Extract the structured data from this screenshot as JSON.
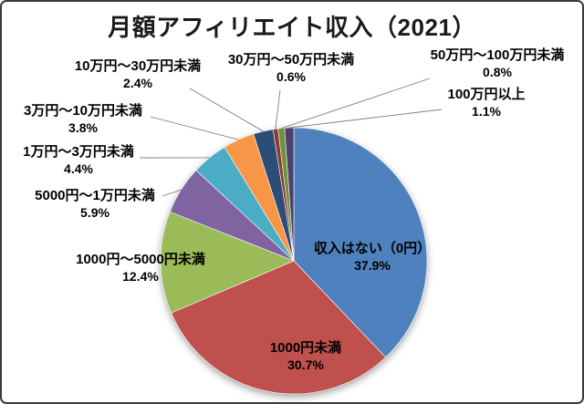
{
  "title": "月額アフィリエイト収入（2021）",
  "chart_data": {
    "type": "pie",
    "title": "月額アフィリエイト収入（2021）",
    "unit": "%",
    "start_angle_deg": 0,
    "direction": "clockwise",
    "legend": "none",
    "label_style": "category name + percentage, callout lines for small slices",
    "slices": [
      {
        "label": "収入はない（0円）",
        "value": 37.9,
        "pct_text": "37.9%",
        "color": "#4E81BD",
        "label_placement": "inside"
      },
      {
        "label": "1000円未満",
        "value": 30.7,
        "pct_text": "30.7%",
        "color": "#C0504D",
        "label_placement": "inside"
      },
      {
        "label": "1000円～5000円未満",
        "value": 12.4,
        "pct_text": "12.4%",
        "color": "#9BBB59",
        "label_placement": "outside"
      },
      {
        "label": "5000円～1万円未満",
        "value": 5.9,
        "pct_text": "5.9%",
        "color": "#8064A2",
        "label_placement": "outside"
      },
      {
        "label": "1万円～3万円未満",
        "value": 4.4,
        "pct_text": "4.4%",
        "color": "#4BACC6",
        "label_placement": "outside"
      },
      {
        "label": "3万円～10万円未満",
        "value": 3.8,
        "pct_text": "3.8%",
        "color": "#F79646",
        "label_placement": "outside"
      },
      {
        "label": "10万円～30万円未満",
        "value": 2.4,
        "pct_text": "2.4%",
        "color": "#2C4D75",
        "label_placement": "outside"
      },
      {
        "label": "30万円～50万円未満",
        "value": 0.6,
        "pct_text": "0.6%",
        "color": "#8C3A34",
        "label_placement": "outside"
      },
      {
        "label": "50万円～100万円未満",
        "value": 0.8,
        "pct_text": "0.8%",
        "color": "#71913D",
        "label_placement": "outside"
      },
      {
        "label": "100万円以上",
        "value": 1.1,
        "pct_text": "1.1%",
        "color": "#4D3F6E",
        "label_placement": "outside"
      }
    ]
  }
}
